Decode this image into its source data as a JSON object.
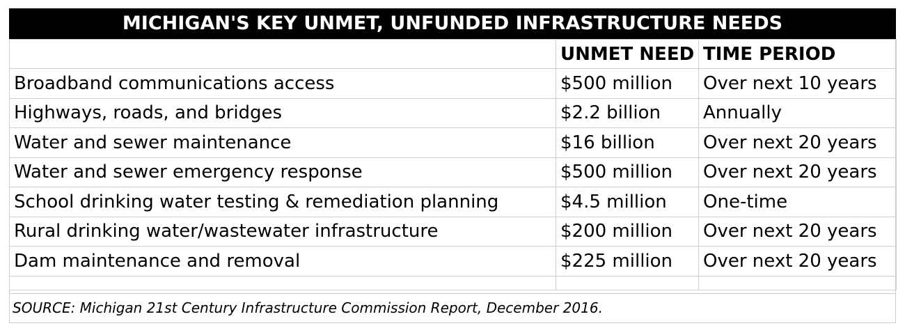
{
  "title": "MICHIGAN'S KEY UNMET, UNFUNDED INFRASTRUCTURE NEEDS",
  "headers": {
    "item": "",
    "unmet_need": "UNMET NEED",
    "time_period": "TIME PERIOD"
  },
  "rows": [
    {
      "item": "Broadband communications access",
      "unmet_need": "$500 million",
      "time_period": "Over next 10 years"
    },
    {
      "item": "Highways, roads, and bridges",
      "unmet_need": "$2.2 billion",
      "time_period": "Annually"
    },
    {
      "item": "Water and sewer maintenance",
      "unmet_need": "$16 billion",
      "time_period": "Over next 20 years"
    },
    {
      "item": "Water and sewer emergency response",
      "unmet_need": "$500 million",
      "time_period": "Over next 20 years"
    },
    {
      "item": "School drinking water testing & remediation planning",
      "unmet_need": "$4.5 million",
      "time_period": "One-time"
    },
    {
      "item": "Rural drinking water/wastewater infrastructure",
      "unmet_need": "$200 million",
      "time_period": "Over next 20 years"
    },
    {
      "item": "Dam maintenance and removal",
      "unmet_need": "$225 million",
      "time_period": "Over next 20 years"
    }
  ],
  "source": "SOURCE: Michigan 21st Century Infrastructure Commission Report, December 2016.",
  "colors": {
    "title_background": "#000000",
    "title_text": "#ffffff",
    "grid_lines": "#cfcfcf"
  }
}
